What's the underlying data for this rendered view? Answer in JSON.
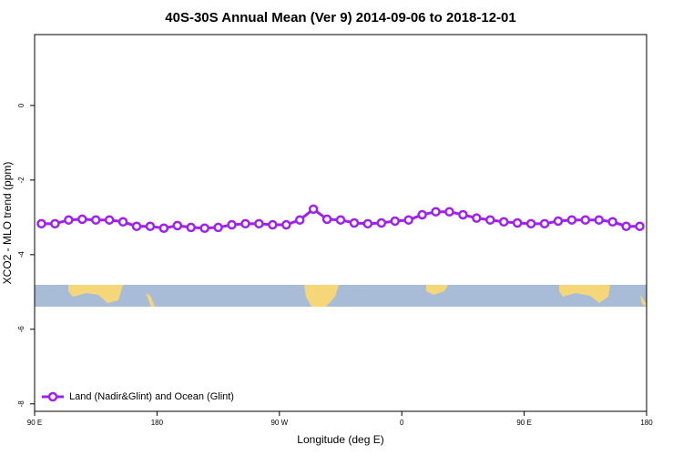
{
  "chart_data": {
    "type": "line",
    "title": "40S-30S Annual Mean (Ver 9)   2014-09-06 to 2018-12-01",
    "x_label": "Longitude (deg E)",
    "y_label": "XCO2 - MLO trend (ppm)",
    "xlim": [
      90,
      540
    ],
    "ylim": [
      -8.2,
      1.9
    ],
    "xticks": [
      {
        "value": 90,
        "label": "90 E"
      },
      {
        "value": 180,
        "label": "180"
      },
      {
        "value": 270,
        "label": "90 W"
      },
      {
        "value": 360,
        "label": "0"
      },
      {
        "value": 450,
        "label": "90 E"
      },
      {
        "value": 540,
        "label": "180"
      }
    ],
    "yticks": [
      0,
      -2,
      -4,
      -6,
      -8
    ],
    "legend": "bottom-left",
    "x": [
      95,
      105,
      115,
      125,
      135,
      145,
      155,
      165,
      175,
      185,
      195,
      205,
      215,
      225,
      235,
      245,
      255,
      265,
      275,
      285,
      295,
      305,
      315,
      325,
      335,
      345,
      355,
      365,
      375,
      385,
      395,
      405,
      415,
      425,
      435,
      445,
      455,
      465,
      475,
      485,
      495,
      505,
      515,
      525,
      535
    ],
    "series": [
      {
        "name": "Land (Nadir&Glint) and Ocean (Glint)",
        "color": "#a020f0",
        "values": [
          -3.17,
          -3.17,
          -3.07,
          -3.05,
          -3.07,
          -3.07,
          -3.12,
          -3.24,
          -3.24,
          -3.29,
          -3.22,
          -3.27,
          -3.29,
          -3.27,
          -3.2,
          -3.17,
          -3.17,
          -3.2,
          -3.2,
          -3.07,
          -2.78,
          -3.05,
          -3.07,
          -3.15,
          -3.17,
          -3.15,
          -3.1,
          -3.07,
          -2.93,
          -2.85,
          -2.85,
          -2.93,
          -3.02,
          -3.07,
          -3.12,
          -3.15,
          -3.17,
          -3.17,
          -3.1,
          -3.07,
          -3.07,
          -3.07,
          -3.12,
          -3.24,
          -3.24
        ]
      }
    ]
  }
}
